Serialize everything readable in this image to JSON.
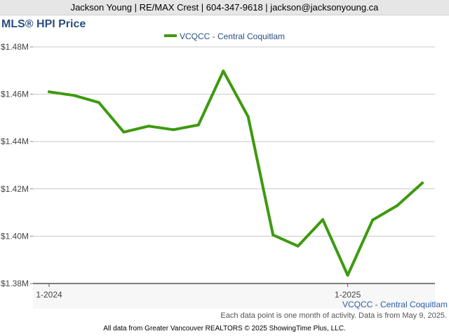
{
  "header": {
    "contact": "Jackson Young | RE/MAX Crest | 604-347-9618 | jackson@jacksonyoung.ca"
  },
  "chart_data": {
    "type": "line",
    "title": "MLS® HPI Price",
    "xlabel": "",
    "ylabel": "",
    "x": [
      "2024-01",
      "2024-02",
      "2024-03",
      "2024-04",
      "2024-05",
      "2024-06",
      "2024-07",
      "2024-08",
      "2024-09",
      "2024-10",
      "2024-11",
      "2024-12",
      "2025-01",
      "2025-02",
      "2025-03",
      "2025-04"
    ],
    "x_ticks": [
      {
        "x": "2024-01",
        "label": "1-2024"
      },
      {
        "x": "2025-01",
        "label": "1-2025"
      }
    ],
    "y_ticks": [
      {
        "value": 1380000,
        "label": "$1.38M"
      },
      {
        "value": 1400000,
        "label": "$1.40M"
      },
      {
        "value": 1420000,
        "label": "$1.42M"
      },
      {
        "value": 1440000,
        "label": "$1.44M"
      },
      {
        "value": 1460000,
        "label": "$1.46M"
      },
      {
        "value": 1480000,
        "label": "$1.48M"
      }
    ],
    "ylim": [
      1380000,
      1480000
    ],
    "grid": true,
    "legend_position": "top-center",
    "series": [
      {
        "name": "VCQCC - Central Coquitlam",
        "color": "#3d9a0f",
        "values": [
          1461000,
          1459500,
          1456500,
          1444000,
          1446500,
          1445000,
          1447000,
          1469800,
          1450500,
          1400500,
          1395800,
          1407000,
          1383500,
          1406800,
          1413000,
          1422500
        ]
      }
    ]
  },
  "series_caption": "VCQCC - Central Coquitlam",
  "note": "Each data point is one month of activity. Data is from May 9, 2025.",
  "footer": "All data from Greater Vancouver REALTORS © 2025 ShowingTime Plus, LLC."
}
